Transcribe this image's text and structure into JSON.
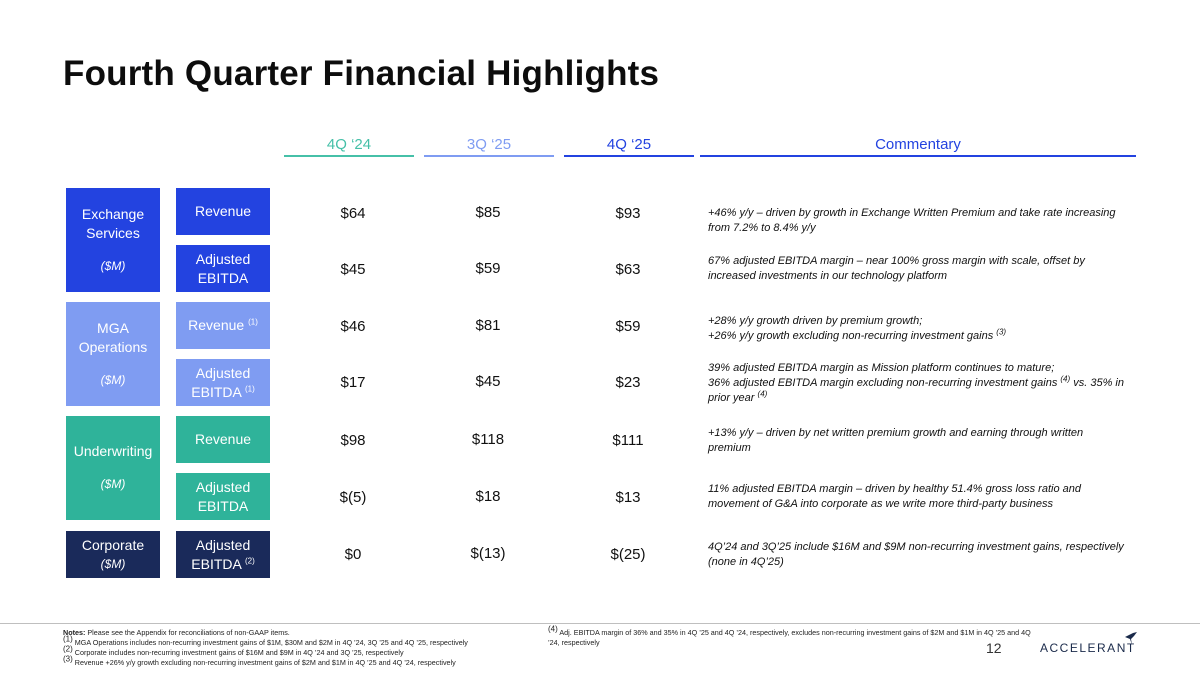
{
  "title": "Fourth Quarter Financial Highlights",
  "columns": [
    "4Q ‘24",
    "3Q ‘25",
    "4Q ‘25",
    "Commentary"
  ],
  "colors": {
    "exchange": "#2343e0",
    "mga": "#7f9cf2",
    "underwriting": "#2fb39a",
    "corporate": "#1a2a5a",
    "col_4q24": "#46c0a8",
    "col_3q25": "#7f9cf2",
    "col_4q25": "#2343e0",
    "col_comm": "#2343e0"
  },
  "segments": {
    "exchange": {
      "name": "Exchange Services",
      "unit": "($M)"
    },
    "mga": {
      "name": "MGA Operations",
      "unit": "($M)"
    },
    "underwriting": {
      "name": "Underwriting",
      "unit": "($M)"
    },
    "corporate": {
      "name": "Corporate",
      "unit": "($M)"
    }
  },
  "rows": [
    {
      "metric": "Revenue",
      "fn": "",
      "v1": "$64",
      "v2": "$85",
      "v3": "$93",
      "comment": "+46% y/y – driven by growth in Exchange Written Premium and take rate increasing from 7.2% to 8.4% y/y"
    },
    {
      "metric": "Adjusted EBITDA",
      "fn": "",
      "v1": "$45",
      "v2": "$59",
      "v3": "$63",
      "comment": "67% adjusted EBITDA margin – near 100% gross margin with scale, offset by increased investments in our technology platform"
    },
    {
      "metric": "Revenue",
      "fn": "(1)",
      "v1": "$46",
      "v2": "$81",
      "v3": "$59",
      "comment_a": "+28% y/y growth driven by premium growth;",
      "comment_b": "+26% y/y growth excluding non-recurring investment gains",
      "comment_fn": "(3)"
    },
    {
      "metric": "Adjusted EBITDA",
      "fn": "(1)",
      "v1": "$17",
      "v2": "$45",
      "v3": "$23",
      "comment_a": "39% adjusted EBITDA margin as Mission platform continues to mature;",
      "comment_b": "36% adjusted EBITDA margin excluding non-recurring investment gains",
      "comment_fn": "(4)",
      "comment_c": "vs. 35% in prior year",
      "comment_fn2": "(4)"
    },
    {
      "metric": "Revenue",
      "fn": "",
      "v1": "$98",
      "v2": "$118",
      "v3": "$111",
      "comment": "+13% y/y – driven by net written premium growth and earning through written premium"
    },
    {
      "metric": "Adjusted EBITDA",
      "fn": "",
      "v1": "$(5)",
      "v2": "$18",
      "v3": "$13",
      "comment": "11% adjusted EBITDA margin – driven by healthy 51.4% gross loss ratio and movement of G&A into corporate as we write more third-party business"
    },
    {
      "metric": "Adjusted EBITDA",
      "fn": "(2)",
      "v1": "$0",
      "v2": "$(13)",
      "v3": "$(25)",
      "comment": "4Q’24 and 3Q’25 include $16M and $9M non-recurring investment gains, respectively (none in 4Q’25)"
    }
  ],
  "notes": {
    "label": "Notes:",
    "intro": "Please see the Appendix for reconciliations of non-GAAP items.",
    "n1_mark": "(1)",
    "n1": "MGA Operations includes non-recurring investment gains of $1M, $30M and $2M in 4Q ’24, 3Q ’25 and 4Q ’25, respectively",
    "n2_mark": "(2)",
    "n2": "Corporate includes non-recurring investment gains of $16M and $9M in 4Q ’24 and 3Q ’25, respectively",
    "n3_mark": "(3)",
    "n3": "Revenue +26% y/y growth excluding non-recurring investment gains of $2M and $1M in 4Q ’25 and 4Q ’24, respectively",
    "n4_mark": "(4)",
    "n4": "Adj. EBITDA margin of 36% and 35% in 4Q ’25 and 4Q ’24, respectively, excludes non-recurring investment gains of $2M and $1M in 4Q ’25 and 4Q ’24, respectively"
  },
  "page_number": "12",
  "logo_text": "ACCELERANT"
}
